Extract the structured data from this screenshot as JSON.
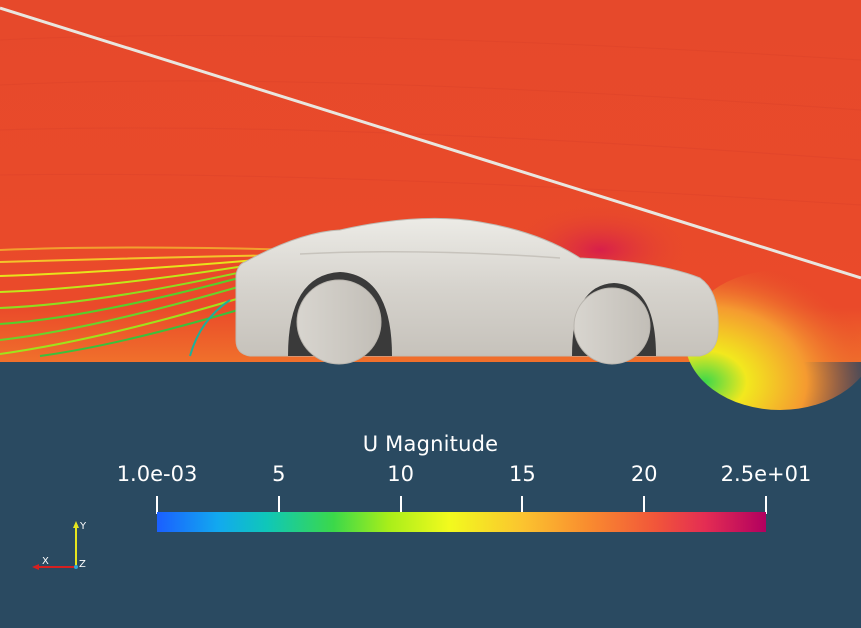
{
  "legend": {
    "title": "U Magnitude",
    "ticks": [
      {
        "label": "1.0e-03",
        "value": 0.001
      },
      {
        "label": "5",
        "value": 5
      },
      {
        "label": "10",
        "value": 10
      },
      {
        "label": "15",
        "value": 15
      },
      {
        "label": "20",
        "value": 20
      },
      {
        "label": "2.5e+01",
        "value": 25
      }
    ],
    "range": [
      0.001,
      25
    ],
    "colormap_stops": [
      "#1a5fff",
      "#12a9ef",
      "#0fc7b9",
      "#3bd84a",
      "#a8ee1a",
      "#f2fa1e",
      "#fbc42f",
      "#f98b2f",
      "#f1553a",
      "#e42d53",
      "#b2005f"
    ]
  },
  "axes": {
    "y_label": "Y",
    "x_label": "X",
    "z_label": "Z"
  },
  "colors": {
    "background": "#2a4a61",
    "flow_field": "#e8482c",
    "car_body": "#d9d6d0",
    "wheel": "#cfcbc4"
  }
}
